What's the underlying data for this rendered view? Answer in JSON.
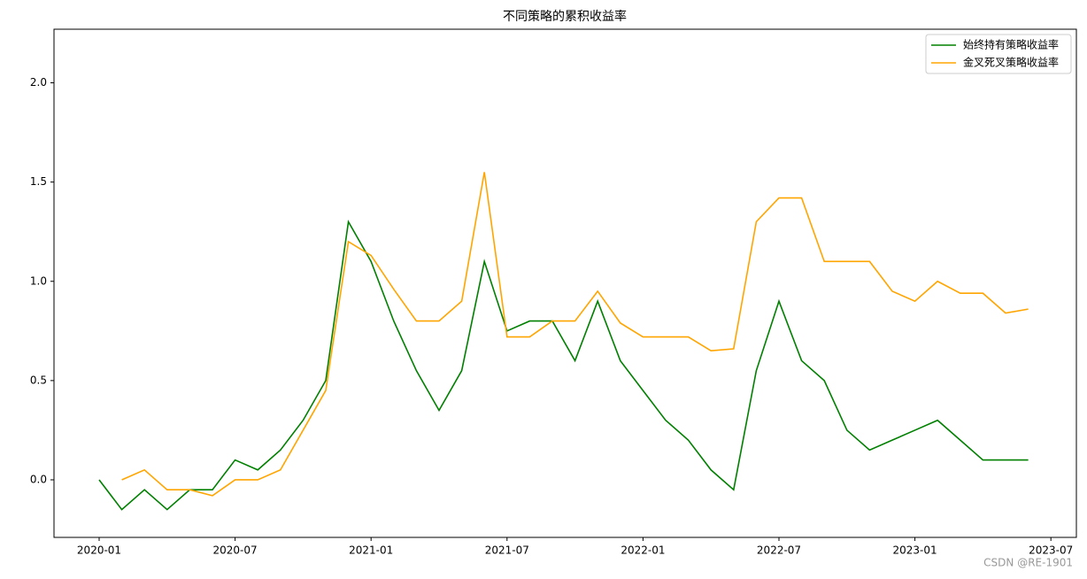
{
  "chart_data": {
    "type": "line",
    "title": "不同策略的累积收益率",
    "x": [
      "2020-01",
      "2020-02",
      "2020-03",
      "2020-04",
      "2020-05",
      "2020-06",
      "2020-07",
      "2020-08",
      "2020-09",
      "2020-10",
      "2020-11",
      "2020-12",
      "2021-01",
      "2021-02",
      "2021-03",
      "2021-04",
      "2021-05",
      "2021-06",
      "2021-07",
      "2021-08",
      "2021-09",
      "2021-10",
      "2021-11",
      "2021-12",
      "2022-01",
      "2022-02",
      "2022-03",
      "2022-04",
      "2022-05",
      "2022-06",
      "2022-07",
      "2022-08",
      "2022-09",
      "2022-10",
      "2022-11",
      "2022-12",
      "2023-01",
      "2023-02",
      "2023-03",
      "2023-04",
      "2023-05",
      "2023-06"
    ],
    "series": [
      {
        "name": "始终持有策略收益率",
        "color": "green",
        "values": [
          0.0,
          -0.15,
          -0.05,
          -0.15,
          -0.05,
          -0.05,
          0.1,
          0.05,
          0.15,
          0.3,
          0.5,
          1.3,
          1.1,
          0.8,
          0.55,
          0.35,
          0.55,
          1.1,
          0.75,
          0.8,
          0.8,
          0.6,
          0.9,
          0.6,
          0.45,
          0.3,
          0.2,
          0.05,
          -0.05,
          0.55,
          0.9,
          0.6,
          0.5,
          0.25,
          0.15,
          0.2,
          0.25,
          0.3,
          0.2,
          0.1,
          0.1,
          0.1
        ]
      },
      {
        "name": "金叉死叉策略收益率",
        "color": "orange",
        "values": [
          null,
          0.0,
          0.05,
          -0.05,
          -0.05,
          -0.08,
          0.0,
          0.0,
          0.05,
          0.25,
          0.45,
          1.2,
          1.13,
          0.96,
          0.8,
          0.8,
          0.9,
          1.55,
          0.72,
          0.72,
          0.8,
          0.8,
          0.95,
          0.79,
          0.72,
          0.72,
          0.72,
          0.65,
          0.66,
          1.3,
          1.42,
          1.42,
          1.1,
          1.1,
          1.1,
          0.95,
          0.9,
          1.0,
          0.94,
          0.94,
          0.84,
          0.86
        ]
      }
    ],
    "xticks": [
      "2020-01",
      "2020-07",
      "2021-01",
      "2021-07",
      "2022-01",
      "2022-07",
      "2023-01",
      "2023-07"
    ],
    "ylim": [
      -0.29,
      2.27
    ],
    "yticks": [
      {
        "value": 0,
        "label": "0.0"
      },
      {
        "value": 0.5,
        "label": "0.5"
      },
      {
        "value": 1,
        "label": "1.0"
      },
      {
        "value": 1.5,
        "label": "1.5"
      },
      {
        "value": 2,
        "label": "2.0"
      }
    ],
    "legend": "upper right",
    "grid": false
  },
  "watermark": "CSDN @RE-1901"
}
